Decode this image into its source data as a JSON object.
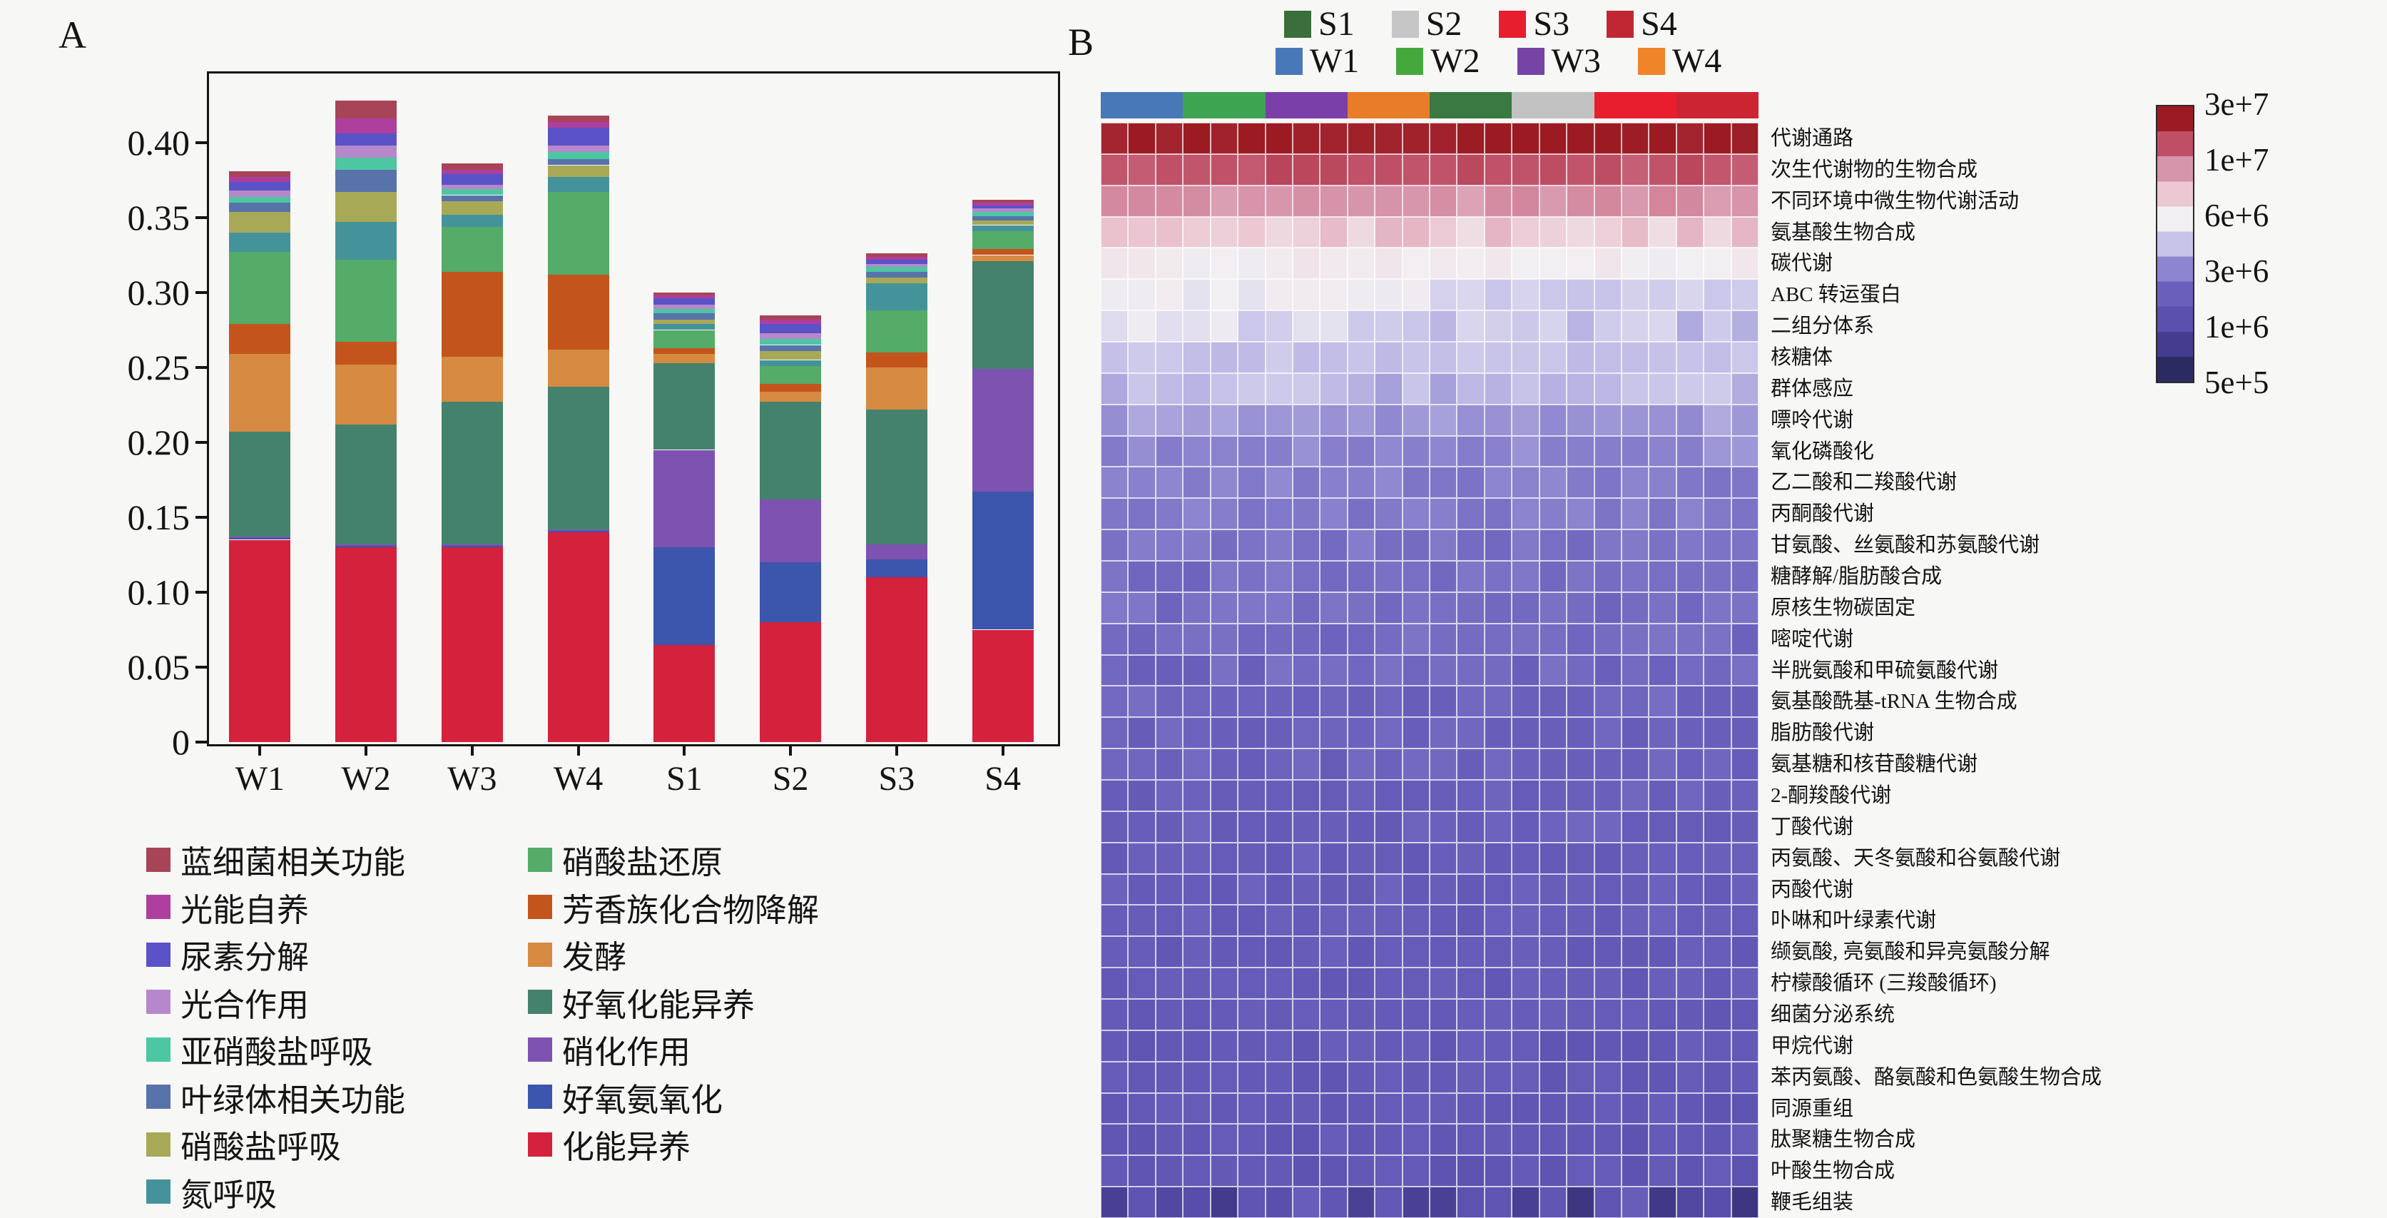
{
  "figure_background": "#f7f7f6",
  "chart_data": [
    {
      "id": "A",
      "panel_label": "A",
      "type": "bar",
      "stacked": true,
      "grid": false,
      "categories": [
        "W1",
        "W2",
        "W3",
        "W4",
        "S1",
        "S2",
        "S3",
        "S4"
      ],
      "ylim": [
        0,
        0.445
      ],
      "yticks": [
        0,
        0.05,
        0.1,
        0.15,
        0.2,
        0.25,
        0.3,
        0.35,
        0.4
      ],
      "ytick_labels": [
        "0",
        "0.05",
        "0.10",
        "0.15",
        "0.20",
        "0.25",
        "0.30",
        "0.35",
        "0.40"
      ],
      "series": [
        {
          "name": "化能异养",
          "color": "#d4213c",
          "values": [
            0.135,
            0.13,
            0.13,
            0.14,
            0.065,
            0.08,
            0.11,
            0.075
          ]
        },
        {
          "name": "好氧氨氧化",
          "color": "#3c55ad",
          "values": [
            0.001,
            0.001,
            0.001,
            0.001,
            0.065,
            0.04,
            0.012,
            0.092
          ]
        },
        {
          "name": "硝化作用",
          "color": "#7e52b0",
          "values": [
            0.001,
            0.001,
            0.001,
            0.001,
            0.065,
            0.042,
            0.01,
            0.082
          ]
        },
        {
          "name": "好氧化能异养",
          "color": "#44826d",
          "values": [
            0.07,
            0.08,
            0.095,
            0.095,
            0.058,
            0.065,
            0.09,
            0.072
          ]
        },
        {
          "name": "发酵",
          "color": "#d68a42",
          "values": [
            0.052,
            0.04,
            0.03,
            0.025,
            0.006,
            0.007,
            0.028,
            0.004
          ]
        },
        {
          "name": "芳香族化合物降解",
          "color": "#c3551c",
          "values": [
            0.02,
            0.015,
            0.057,
            0.05,
            0.004,
            0.005,
            0.01,
            0.004
          ]
        },
        {
          "name": "硝酸盐还原",
          "color": "#55ab68",
          "values": [
            0.048,
            0.055,
            0.03,
            0.055,
            0.012,
            0.012,
            0.028,
            0.012
          ]
        },
        {
          "name": "氮呼吸",
          "color": "#44939b",
          "values": [
            0.013,
            0.025,
            0.008,
            0.01,
            0.004,
            0.004,
            0.018,
            0.004
          ]
        },
        {
          "name": "硝酸盐呼吸",
          "color": "#a8a957",
          "values": [
            0.014,
            0.02,
            0.009,
            0.008,
            0.003,
            0.006,
            0.004,
            0.003
          ]
        },
        {
          "name": "叶绿体相关功能",
          "color": "#5872aa",
          "values": [
            0.006,
            0.015,
            0.004,
            0.004,
            0.004,
            0.004,
            0.004,
            0.003
          ]
        },
        {
          "name": "亚硝酸盐呼吸",
          "color": "#4cc7a1",
          "values": [
            0.004,
            0.008,
            0.004,
            0.005,
            0.003,
            0.004,
            0.003,
            0.003
          ]
        },
        {
          "name": "光合作用",
          "color": "#b688cb",
          "values": [
            0.004,
            0.008,
            0.003,
            0.004,
            0.003,
            0.004,
            0.002,
            0.002
          ]
        },
        {
          "name": "尿素分解",
          "color": "#5a52c6",
          "values": [
            0.006,
            0.008,
            0.007,
            0.012,
            0.004,
            0.006,
            0.003,
            0.002
          ]
        },
        {
          "name": "光能自养",
          "color": "#ae3f9e",
          "values": [
            0.003,
            0.01,
            0.003,
            0.004,
            0.002,
            0.003,
            0.002,
            0.002
          ]
        },
        {
          "name": "蓝细菌相关功能",
          "color": "#a84457",
          "values": [
            0.004,
            0.012,
            0.004,
            0.004,
            0.002,
            0.003,
            0.002,
            0.002
          ]
        }
      ],
      "legend_left": [
        "蓝细菌相关功能",
        "光能自养",
        "尿素分解",
        "光合作用",
        "亚硝酸盐呼吸",
        "叶绿体相关功能",
        "硝酸盐呼吸",
        "氮呼吸"
      ],
      "legend_right": [
        "硝酸盐还原",
        "芳香族化合物降解",
        "发酵",
        "好氧化能异养",
        "硝化作用",
        "好氧氨氧化",
        "化能异养"
      ]
    },
    {
      "id": "B",
      "panel_label": "B",
      "type": "heatmap",
      "columns": 24,
      "replicates_per_group": 3,
      "legend_row1": [
        {
          "label": "S1",
          "color": "#3a6e3a"
        },
        {
          "label": "S2",
          "color": "#c6c6c6"
        },
        {
          "label": "S3",
          "color": "#e61e2e"
        },
        {
          "label": "S4",
          "color": "#c02733"
        }
      ],
      "legend_row2": [
        {
          "label": "W1",
          "color": "#4878b8"
        },
        {
          "label": "W2",
          "color": "#45a83c"
        },
        {
          "label": "W3",
          "color": "#7544a5"
        },
        {
          "label": "W4",
          "color": "#f08428"
        }
      ],
      "column_groups": [
        {
          "label": "W1",
          "color": "#4878b8",
          "span": 3
        },
        {
          "label": "W2",
          "color": "#3da552",
          "span": 3
        },
        {
          "label": "W3",
          "color": "#7a3fa8",
          "span": 3
        },
        {
          "label": "W4",
          "color": "#e87c28",
          "span": 3
        },
        {
          "label": "S1",
          "color": "#3a7a42",
          "span": 3
        },
        {
          "label": "S2",
          "color": "#c2c2c2",
          "span": 3
        },
        {
          "label": "S3",
          "color": "#e81e2e",
          "span": 3
        },
        {
          "label": "S4",
          "color": "#cc2433",
          "span": 3
        }
      ],
      "palette_low_to_high": [
        "#2c2a62",
        "#443c8e",
        "#5a50ae",
        "#6a60bc",
        "#8d85cf",
        "#c7c3e9",
        "#f2eff2",
        "#ecc8d3",
        "#d795ab",
        "#bf4f66",
        "#9c1b23"
      ],
      "colorbar_labels": [
        "3e+7",
        "1e+7",
        "6e+6",
        "3e+6",
        "1e+6",
        "5e+5"
      ],
      "rows": [
        {
          "label": "代谢通路",
          "level": 10,
          "jitter": 0.4
        },
        {
          "label": "次生代谢物的生物合成",
          "level": 9,
          "jitter": 0.5
        },
        {
          "label": "不同环境中微生物代谢活动",
          "level": 8,
          "jitter": 0.5
        },
        {
          "label": "氨基酸生物合成",
          "level": 6.9,
          "jitter": 1.0
        },
        {
          "label": "碳代谢",
          "level": 6.1,
          "jitter": 0.4
        },
        {
          "label": "ABC 转运蛋白",
          "level": 5.9,
          "jitter": 0.5,
          "s_bias": -0.7
        },
        {
          "label": "二组分体系",
          "level": 5.5,
          "jitter": 0.9,
          "s_bias": -0.5
        },
        {
          "label": "核糖体",
          "level": 5.0,
          "jitter": 0.4
        },
        {
          "label": "群体感应",
          "level": 4.8,
          "jitter": 0.8
        },
        {
          "label": "嘌呤代谢",
          "level": 4.3,
          "jitter": 0.6
        },
        {
          "label": "氧化磷酸化",
          "level": 4.0,
          "jitter": 0.6
        },
        {
          "label": "乙二酸和二羧酸代谢",
          "level": 3.8,
          "jitter": 0.6
        },
        {
          "label": "丙酮酸代谢",
          "level": 3.7,
          "jitter": 0.6
        },
        {
          "label": "甘氨酸、丝氨酸和苏氨酸代谢",
          "level": 3.5,
          "jitter": 0.6
        },
        {
          "label": "糖酵解/脂肪酸合成",
          "level": 3.4,
          "jitter": 0.6
        },
        {
          "label": "原核生物碳固定",
          "level": 3.4,
          "jitter": 0.6
        },
        {
          "label": "嘧啶代谢",
          "level": 3.3,
          "jitter": 0.6
        },
        {
          "label": "半胱氨酸和甲硫氨酸代谢",
          "level": 3.2,
          "jitter": 0.6
        },
        {
          "label": "氨基酸酰基-tRNA 生物合成",
          "level": 3.1,
          "jitter": 0.6
        },
        {
          "label": "脂肪酸代谢",
          "level": 3.0,
          "jitter": 0.6
        },
        {
          "label": "氨基糖和核苷酸糖代谢",
          "level": 3.0,
          "jitter": 0.6
        },
        {
          "label": "2-酮羧酸代谢",
          "level": 2.9,
          "jitter": 0.6
        },
        {
          "label": "丁酸代谢",
          "level": 2.9,
          "jitter": 0.6
        },
        {
          "label": "丙氨酸、天冬氨酸和谷氨酸代谢",
          "level": 2.8,
          "jitter": 0.6
        },
        {
          "label": "丙酸代谢",
          "level": 2.8,
          "jitter": 0.6
        },
        {
          "label": "卟啉和叶绿素代谢",
          "level": 2.8,
          "jitter": 0.6
        },
        {
          "label": "缬氨酸, 亮氨酸和异亮氨酸分解",
          "level": 2.7,
          "jitter": 0.6
        },
        {
          "label": "柠檬酸循环 (三羧酸循环)",
          "level": 2.7,
          "jitter": 0.6
        },
        {
          "label": "细菌分泌系统",
          "level": 2.7,
          "jitter": 0.6
        },
        {
          "label": "甲烷代谢",
          "level": 2.6,
          "jitter": 0.6
        },
        {
          "label": "苯丙氨酸、酪氨酸和色氨酸生物合成",
          "level": 2.6,
          "jitter": 0.6
        },
        {
          "label": "同源重组",
          "level": 2.5,
          "jitter": 0.6
        },
        {
          "label": "肽聚糖生物合成",
          "level": 2.5,
          "jitter": 0.6
        },
        {
          "label": "叶酸生物合成",
          "level": 2.4,
          "jitter": 0.6
        },
        {
          "label": "鞭毛组装",
          "level": 1.6,
          "jitter": 2.6
        }
      ]
    }
  ]
}
